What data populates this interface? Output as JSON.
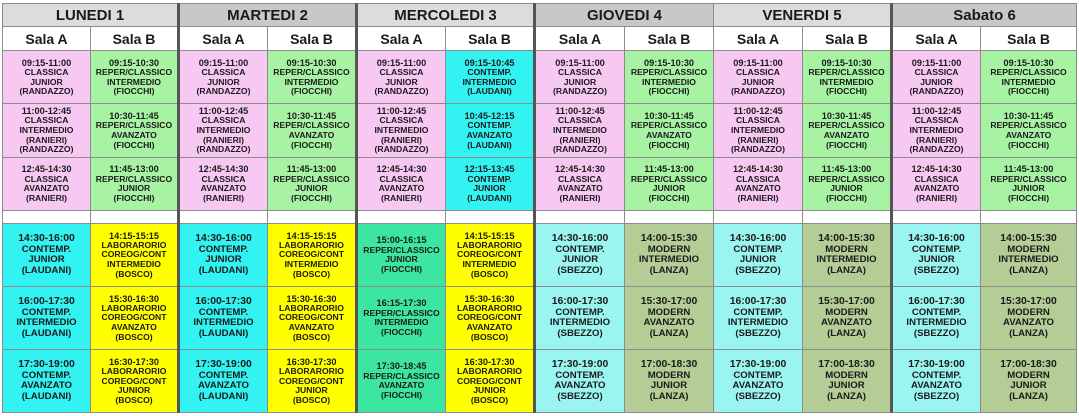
{
  "days": [
    {
      "label": "LUNEDI 1"
    },
    {
      "label": "MARTEDI 2"
    },
    {
      "label": "MERCOLEDI 3"
    },
    {
      "label": "GIOVEDI 4"
    },
    {
      "label": "VENERDI 5"
    },
    {
      "label": "Sabato 6"
    }
  ],
  "sala_labels": [
    "Sala A",
    "Sala B",
    "Sala A",
    "Sala B",
    "Sala A",
    "Sala B",
    "Sala A",
    "Sala B",
    "Sala A",
    "Sala B",
    "Sala A",
    "Sala B"
  ],
  "rows": [
    {
      "cells": [
        {
          "lines": [
            "09:15-11:00",
            "CLASSICA",
            "JUNIOR",
            "(RANDAZZO)"
          ],
          "color": "#f7c9f2"
        },
        {
          "lines": [
            "09:15-10:30",
            "REPER/CLASSICO",
            "INTERMEDIO",
            "(FIOCCHI)"
          ],
          "color": "#a7f3a3"
        },
        {
          "lines": [
            "09:15-11:00",
            "CLASSICA",
            "JUNIOR",
            "(RANDAZZO)"
          ],
          "color": "#f7c9f2"
        },
        {
          "lines": [
            "09:15-10:30",
            "REPER/CLASSICO",
            "INTERMEDIO",
            "(FIOCCHI)"
          ],
          "color": "#a7f3a3"
        },
        {
          "lines": [
            "09:15-11:00",
            "CLASSICA",
            "JUNIOR",
            "(RANDAZZO)"
          ],
          "color": "#f7c9f2"
        },
        {
          "lines": [
            "09:15-10:45",
            "CONTEMP.",
            "INTERMEDIO",
            "(LAUDANI)"
          ],
          "color": "#33f2f2"
        },
        {
          "lines": [
            "09:15-11:00",
            "CLASSICA",
            "JUNIOR",
            "(RANDAZZO)"
          ],
          "color": "#f7c9f2"
        },
        {
          "lines": [
            "09:15-10:30",
            "REPER/CLASSICO",
            "INTERMEDIO",
            "(FIOCCHI)"
          ],
          "color": "#a7f3a3"
        },
        {
          "lines": [
            "09:15-11:00",
            "CLASSICA",
            "JUNIOR",
            "(RANDAZZO)"
          ],
          "color": "#f7c9f2"
        },
        {
          "lines": [
            "09:15-10:30",
            "REPER/CLASSICO",
            "INTERMEDIO",
            "(FIOCCHI)"
          ],
          "color": "#a7f3a3"
        },
        {
          "lines": [
            "09:15-11:00",
            "CLASSICA",
            "JUNIOR",
            "(RANDAZZO)"
          ],
          "color": "#f7c9f2"
        },
        {
          "lines": [
            "09:15-10:30",
            "REPER/CLASSICO",
            "INTERMEDIO",
            "(FIOCCHI)"
          ],
          "color": "#a7f3a3"
        }
      ]
    },
    {
      "cells": [
        {
          "lines": [
            "11:00-12:45",
            "CLASSICA",
            "INTERMEDIO",
            "(RANIERI)",
            "(RANDAZZO)"
          ],
          "color": "#f7c9f2"
        },
        {
          "lines": [
            "10:30-11:45",
            "REPER/CLASSICO",
            "AVANZATO",
            "(FIOCCHI)"
          ],
          "color": "#a7f3a3"
        },
        {
          "lines": [
            "11:00-12:45",
            "CLASSICA",
            "INTERMEDIO",
            "(RANIERI)",
            "(RANDAZZO)"
          ],
          "color": "#f7c9f2"
        },
        {
          "lines": [
            "10:30-11:45",
            "REPER/CLASSICO",
            "AVANZATO",
            "(FIOCCHI)"
          ],
          "color": "#a7f3a3"
        },
        {
          "lines": [
            "11:00-12:45",
            "CLASSICA",
            "INTERMEDIO",
            "(RANIERI)",
            "(RANDAZZO)"
          ],
          "color": "#f7c9f2"
        },
        {
          "lines": [
            "10:45-12:15",
            "CONTEMP.",
            "AVANZATO",
            "(LAUDANI)"
          ],
          "color": "#33f2f2"
        },
        {
          "lines": [
            "11:00-12:45",
            "CLASSICA",
            "INTERMEDIO",
            "(RANIERI)",
            "(RANDAZZO)"
          ],
          "color": "#f7c9f2"
        },
        {
          "lines": [
            "10:30-11:45",
            "REPER/CLASSICO",
            "AVANZATO",
            "(FIOCCHI)"
          ],
          "color": "#a7f3a3"
        },
        {
          "lines": [
            "11:00-12:45",
            "CLASSICA",
            "INTERMEDIO",
            "(RANIERI)",
            "(RANDAZZO)"
          ],
          "color": "#f7c9f2"
        },
        {
          "lines": [
            "10:30-11:45",
            "REPER/CLASSICO",
            "AVANZATO",
            "(FIOCCHI)"
          ],
          "color": "#a7f3a3"
        },
        {
          "lines": [
            "11:00-12:45",
            "CLASSICA",
            "INTERMEDIO",
            "(RANIERI)",
            "(RANDAZZO)"
          ],
          "color": "#f7c9f2"
        },
        {
          "lines": [
            "10:30-11:45",
            "REPER/CLASSICO",
            "AVANZATO",
            "(FIOCCHI)"
          ],
          "color": "#a7f3a3"
        }
      ]
    },
    {
      "cells": [
        {
          "lines": [
            "12:45-14:30",
            "CLASSICA",
            "AVANZATO",
            "(RANIERI)"
          ],
          "color": "#f7c9f2"
        },
        {
          "lines": [
            "11:45-13:00",
            "REPER/CLASSICO",
            "JUNIOR",
            "(FIOCCHI)"
          ],
          "color": "#a7f3a3"
        },
        {
          "lines": [
            "12:45-14:30",
            "CLASSICA",
            "AVANZATO",
            "(RANIERI)"
          ],
          "color": "#f7c9f2"
        },
        {
          "lines": [
            "11:45-13:00",
            "REPER/CLASSICO",
            "JUNIOR",
            "(FIOCCHI)"
          ],
          "color": "#a7f3a3"
        },
        {
          "lines": [
            "12:45-14:30",
            "CLASSICA",
            "AVANZATO",
            "(RANIERI)"
          ],
          "color": "#f7c9f2"
        },
        {
          "lines": [
            "12:15-13:45",
            "CONTEMP.",
            "JUNIOR",
            "(LAUDANI)"
          ],
          "color": "#33f2f2"
        },
        {
          "lines": [
            "12:45-14:30",
            "CLASSICA",
            "AVANZATO",
            "(RANIERI)"
          ],
          "color": "#f7c9f2"
        },
        {
          "lines": [
            "11:45-13:00",
            "REPER/CLASSICO",
            "JUNIOR",
            "(FIOCCHI)"
          ],
          "color": "#a7f3a3"
        },
        {
          "lines": [
            "12:45-14:30",
            "CLASSICA",
            "AVANZATO",
            "(RANIERI)"
          ],
          "color": "#f7c9f2"
        },
        {
          "lines": [
            "11:45-13:00",
            "REPER/CLASSICO",
            "JUNIOR",
            "(FIOCCHI)"
          ],
          "color": "#a7f3a3"
        },
        {
          "lines": [
            "12:45-14:30",
            "CLASSICA",
            "AVANZATO",
            "(RANIERI)"
          ],
          "color": "#f7c9f2"
        },
        {
          "lines": [
            "11:45-13:00",
            "REPER/CLASSICO",
            "JUNIOR",
            "(FIOCCHI)"
          ],
          "color": "#a7f3a3"
        }
      ]
    },
    {
      "cells": [
        {
          "lines": [
            "14:30-16:00",
            "CONTEMP.",
            "JUNIOR",
            "(LAUDANI)"
          ],
          "color": "#33f2f2"
        },
        {
          "lines": [
            "14:15-15:15",
            "LABORARORIO",
            "COREOG/CONT",
            "INTERMEDIO",
            "(BOSCO)"
          ],
          "color": "#ffff00"
        },
        {
          "lines": [
            "14:30-16:00",
            "CONTEMP.",
            "JUNIOR",
            "(LAUDANI)"
          ],
          "color": "#33f2f2"
        },
        {
          "lines": [
            "14:15-15:15",
            "LABORARORIO",
            "COREOG/CONT",
            "INTERMEDIO",
            "(BOSCO)"
          ],
          "color": "#ffff00"
        },
        {
          "lines": [
            "15:00-16:15",
            "REPER/CLASSICO",
            "JUNIOR",
            "(FIOCCHI)"
          ],
          "color": "#3de6a0"
        },
        {
          "lines": [
            "14:15-15:15",
            "LABORARORIO",
            "COREOG/CONT",
            "INTERMEDIO",
            "(BOSCO)"
          ],
          "color": "#ffff00"
        },
        {
          "lines": [
            "14:30-16:00",
            "CONTEMP.",
            "JUNIOR",
            "(SBEZZO)"
          ],
          "color": "#9af5f0"
        },
        {
          "lines": [
            "14:00-15:30",
            "MODERN",
            "INTERMEDIO",
            "(LANZA)"
          ],
          "color": "#b4cc96"
        },
        {
          "lines": [
            "14:30-16:00",
            "CONTEMP.",
            "JUNIOR",
            "(SBEZZO)"
          ],
          "color": "#9af5f0"
        },
        {
          "lines": [
            "14:00-15:30",
            "MODERN",
            "INTERMEDIO",
            "(LANZA)"
          ],
          "color": "#b4cc96"
        },
        {
          "lines": [
            "14:30-16:00",
            "CONTEMP.",
            "JUNIOR",
            "(SBEZZO)"
          ],
          "color": "#9af5f0"
        },
        {
          "lines": [
            "14:00-15:30",
            "MODERN",
            "INTERMEDIO",
            "(LANZA)"
          ],
          "color": "#b4cc96"
        }
      ]
    },
    {
      "cells": [
        {
          "lines": [
            "16:00-17:30",
            "CONTEMP.",
            "INTERMEDIO",
            "(LAUDANI)"
          ],
          "color": "#33f2f2"
        },
        {
          "lines": [
            "15:30-16:30",
            "LABORARORIO",
            "COREOG/CONT",
            "AVANZATO",
            "(BOSCO)"
          ],
          "color": "#ffff00"
        },
        {
          "lines": [
            "16:00-17:30",
            "CONTEMP.",
            "INTERMEDIO",
            "(LAUDANI)"
          ],
          "color": "#33f2f2"
        },
        {
          "lines": [
            "15:30-16:30",
            "LABORARORIO",
            "COREOG/CONT",
            "AVANZATO",
            "(BOSCO)"
          ],
          "color": "#ffff00"
        },
        {
          "lines": [
            "16:15-17:30",
            "REPER/CLASSICO",
            "INTERMEDIO",
            "(FIOCCHI)"
          ],
          "color": "#3de6a0"
        },
        {
          "lines": [
            "15:30-16:30",
            "LABORARORIO",
            "COREOG/CONT",
            "AVANZATO",
            "(BOSCO)"
          ],
          "color": "#ffff00"
        },
        {
          "lines": [
            "16:00-17:30",
            "CONTEMP.",
            "INTERMEDIO",
            "(SBEZZO)"
          ],
          "color": "#9af5f0"
        },
        {
          "lines": [
            "15:30-17:00",
            "MODERN",
            "AVANZATO",
            "(LANZA)"
          ],
          "color": "#b4cc96"
        },
        {
          "lines": [
            "16:00-17:30",
            "CONTEMP.",
            "INTERMEDIO",
            "(SBEZZO)"
          ],
          "color": "#9af5f0"
        },
        {
          "lines": [
            "15:30-17:00",
            "MODERN",
            "AVANZATO",
            "(LANZA)"
          ],
          "color": "#b4cc96"
        },
        {
          "lines": [
            "16:00-17:30",
            "CONTEMP.",
            "INTERMEDIO",
            "(SBEZZO)"
          ],
          "color": "#9af5f0"
        },
        {
          "lines": [
            "15:30-17:00",
            "MODERN",
            "AVANZATO",
            "(LANZA)"
          ],
          "color": "#b4cc96"
        }
      ]
    },
    {
      "cells": [
        {
          "lines": [
            "17:30-19:00",
            "CONTEMP.",
            "AVANZATO",
            "(LAUDANI)"
          ],
          "color": "#33f2f2"
        },
        {
          "lines": [
            "16:30-17:30",
            "LABORARORIO",
            "COREOG/CONT",
            "JUNIOR",
            "(BOSCO)"
          ],
          "color": "#ffff00"
        },
        {
          "lines": [
            "17:30-19:00",
            "CONTEMP.",
            "AVANZATO",
            "(LAUDANI)"
          ],
          "color": "#33f2f2"
        },
        {
          "lines": [
            "16:30-17:30",
            "LABORARORIO",
            "COREOG/CONT",
            "JUNIOR",
            "(BOSCO)"
          ],
          "color": "#ffff00"
        },
        {
          "lines": [
            "17:30-18:45",
            "REPER/CLASSICO",
            "AVANZATO",
            "(FIOCCHI)"
          ],
          "color": "#3de6a0"
        },
        {
          "lines": [
            "16:30-17:30",
            "LABORARORIO",
            "COREOG/CONT",
            "JUNIOR",
            "(BOSCO)"
          ],
          "color": "#ffff00"
        },
        {
          "lines": [
            "17:30-19:00",
            "CONTEMP.",
            "AVANZATO",
            "(SBEZZO)"
          ],
          "color": "#9af5f0"
        },
        {
          "lines": [
            "17:00-18:30",
            "MODERN",
            "JUNIOR",
            "(LANZA)"
          ],
          "color": "#b4cc96"
        },
        {
          "lines": [
            "17:30-19:00",
            "CONTEMP.",
            "AVANZATO",
            "(SBEZZO)"
          ],
          "color": "#9af5f0"
        },
        {
          "lines": [
            "17:00-18:30",
            "MODERN",
            "JUNIOR",
            "(LANZA)"
          ],
          "color": "#b4cc96"
        },
        {
          "lines": [
            "17:30-19:00",
            "CONTEMP.",
            "AVANZATO",
            "(SBEZZO)"
          ],
          "color": "#9af5f0"
        },
        {
          "lines": [
            "17:00-18:30",
            "MODERN",
            "JUNIOR",
            "(LANZA)"
          ],
          "color": "#b4cc96"
        }
      ]
    }
  ]
}
